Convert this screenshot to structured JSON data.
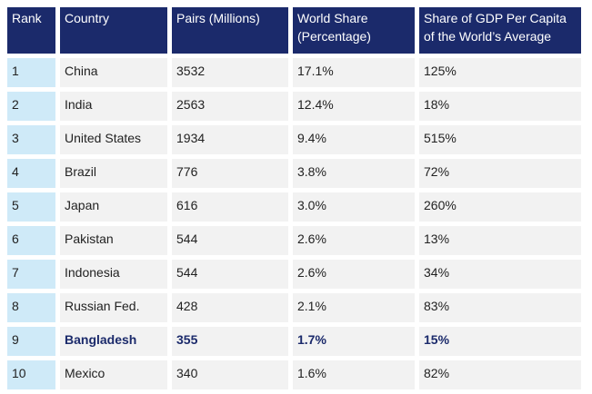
{
  "table": {
    "headers": [
      "Rank",
      "Country",
      "Pairs (Millions)",
      "World Share (Percentage)",
      "Share of GDP Per Capita of the World’s Average"
    ],
    "rows": [
      {
        "rank": "1",
        "country": "China",
        "pairs": "3532",
        "share": "17.1%",
        "gdp": "125%"
      },
      {
        "rank": "2",
        "country": "India",
        "pairs": "2563",
        "share": "12.4%",
        "gdp": "18%"
      },
      {
        "rank": "3",
        "country": "United States",
        "pairs": "1934",
        "share": "9.4%",
        "gdp": "515%"
      },
      {
        "rank": "4",
        "country": "Brazil",
        "pairs": "776",
        "share": "3.8%",
        "gdp": "72%"
      },
      {
        "rank": "5",
        "country": "Japan",
        "pairs": "616",
        "share": "3.0%",
        "gdp": "260%"
      },
      {
        "rank": "6",
        "country": "Pakistan",
        "pairs": "544",
        "share": "2.6%",
        "gdp": "13%"
      },
      {
        "rank": "7",
        "country": "Indonesia",
        "pairs": "544",
        "share": "2.6%",
        "gdp": "34%"
      },
      {
        "rank": "8",
        "country": "Russian Fed.",
        "pairs": "428",
        "share": "2.1%",
        "gdp": "83%"
      },
      {
        "rank": "9",
        "country": "Bangladesh",
        "pairs": "355",
        "share": "1.7%",
        "gdp": "15%"
      },
      {
        "rank": "10",
        "country": "Mexico",
        "pairs": "340",
        "share": "1.6%",
        "gdp": "82%"
      }
    ]
  },
  "colors": {
    "header_bg": "#1b2a6b",
    "rank_bg": "#cfeaf8",
    "cell_bg": "#f2f2f2",
    "highlight_text": "#1b2a6b"
  }
}
